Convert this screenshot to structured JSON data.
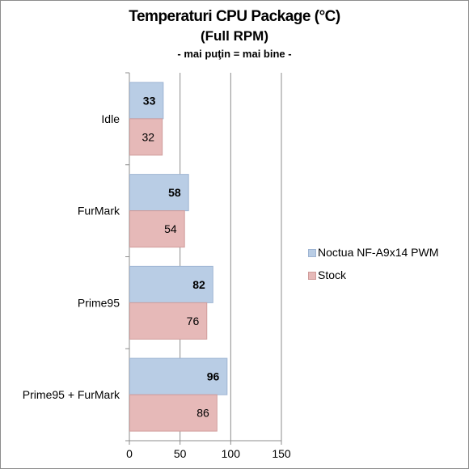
{
  "title": "Temperaturi CPU Package (°C)",
  "subtitle": "(Full RPM)",
  "note": "- mai puţin = mai bine -",
  "chart_data": {
    "type": "bar",
    "orientation": "horizontal",
    "categories": [
      "Idle",
      "FurMark",
      "Prime95",
      "Prime95 + FurMark"
    ],
    "series": [
      {
        "name": "Noctua NF-A9x14 PWM",
        "values": [
          33,
          58,
          82,
          96
        ],
        "color": "#b9cde5",
        "edge": "#9fb5d3",
        "label_bold": true
      },
      {
        "name": "Stock",
        "values": [
          32,
          54,
          76,
          86
        ],
        "color": "#e6b9b8",
        "edge": "#d09c9b",
        "label_bold": false
      }
    ],
    "xlim": [
      0,
      150
    ],
    "xticks": [
      0,
      50,
      100,
      150
    ],
    "grid": true,
    "legend": "right"
  }
}
